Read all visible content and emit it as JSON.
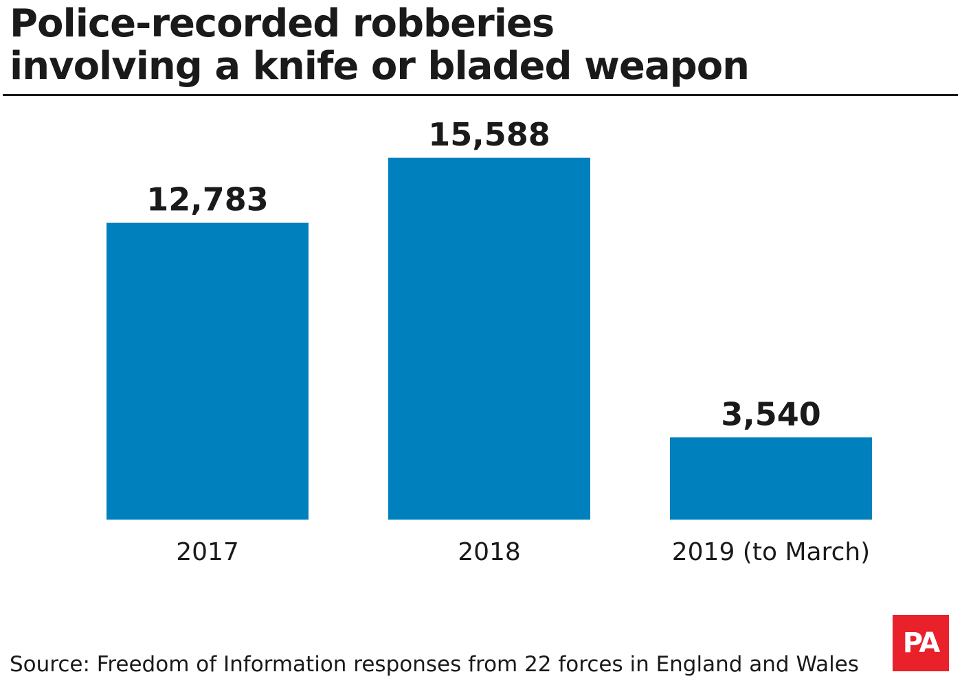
{
  "header": {
    "title_lines": [
      "Police-recorded robberies",
      "involving a knife or bladed weapon"
    ]
  },
  "chart_data": {
    "type": "bar",
    "title": "Police-recorded robberies involving a knife or bladed weapon",
    "categories": [
      "2017",
      "2018",
      "2019 (to March)"
    ],
    "values": [
      12783,
      15588,
      3540
    ],
    "value_labels": [
      "12,783",
      "15,588",
      "3,540"
    ],
    "xlabel": "",
    "ylabel": "",
    "ylim": [
      0,
      17000
    ],
    "grid": false,
    "legend": "none",
    "bar_color": "#0081bd"
  },
  "footer": {
    "source": "Source: Freedom of Information responses from 22 forces in England and Wales",
    "logo_text": "PA",
    "logo_color": "#e8212b"
  }
}
